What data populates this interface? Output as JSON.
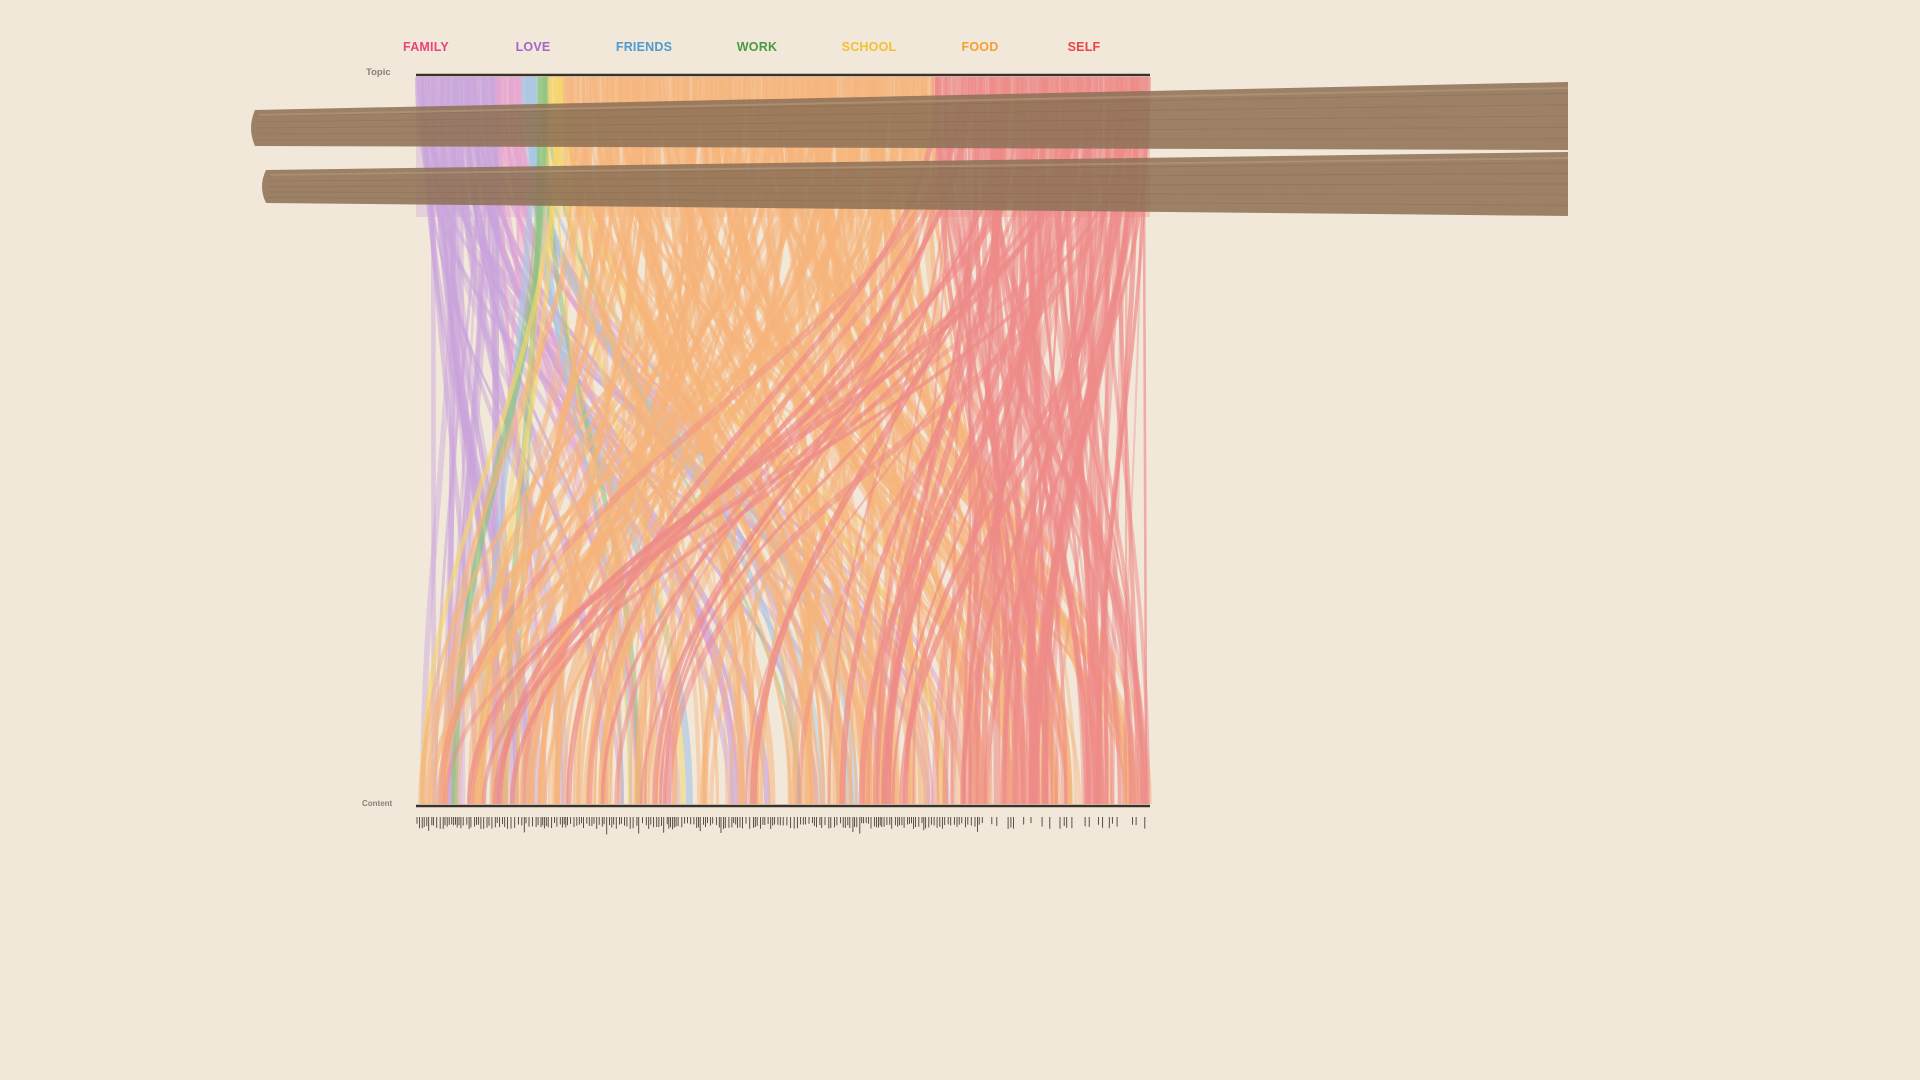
{
  "chart_data": {
    "type": "alluvial",
    "top_axis_label": "Topic",
    "bottom_axis_label": "Content",
    "topics": [
      {
        "name": "FAMILY",
        "color": "#e8457a",
        "ribbon_color": "#c9a3dc"
      },
      {
        "name": "LOVE",
        "color": "#a466c9",
        "ribbon_color": "#e6a2cf"
      },
      {
        "name": "FRIENDS",
        "color": "#4f9bd1",
        "ribbon_color": "#a9c7e3"
      },
      {
        "name": "WORK",
        "color": "#4b9a42",
        "ribbon_color": "#8cc47e"
      },
      {
        "name": "SCHOOL",
        "color": "#f2c033",
        "ribbon_color": "#f5d56a"
      },
      {
        "name": "FOOD",
        "color": "#f2a032",
        "ribbon_color": "#f6b47a"
      },
      {
        "name": "SELF",
        "color": "#e8454a",
        "ribbon_color": "#ee8a88"
      }
    ],
    "top_share": [
      0.11,
      0.035,
      0.02,
      0.015,
      0.02,
      0.505,
      0.295
    ],
    "approx_ribbon_count": 420
  },
  "decor": {
    "overlay": "chopsticks",
    "chopstick_color": "#8f7257"
  }
}
